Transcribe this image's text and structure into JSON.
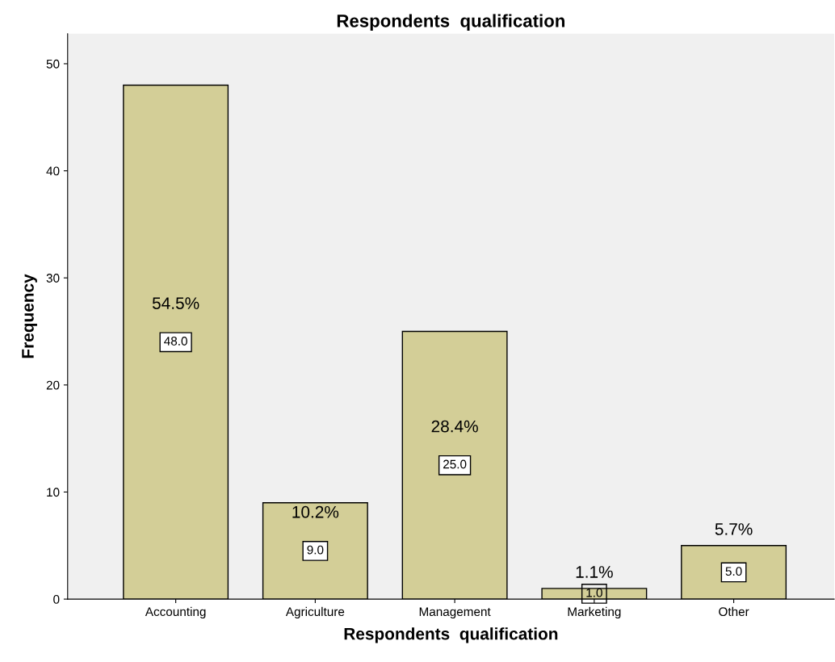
{
  "chart_data": {
    "type": "bar",
    "title": "Respondents  qualification",
    "xlabel": "Respondents  qualification",
    "ylabel": "Frequency",
    "categories": [
      "Accounting",
      "Agriculture",
      "Management",
      "Marketing",
      "Other"
    ],
    "values": [
      48,
      9,
      25,
      1,
      5
    ],
    "value_labels": [
      "48.0",
      "9.0",
      "25.0",
      "1.0",
      "5.0"
    ],
    "color": "#d3ce97",
    "ylim": [
      0,
      52.8
    ],
    "yticks": [
      0,
      10,
      20,
      30,
      40,
      50
    ],
    "grid": false,
    "legend": false,
    "annotations": [
      "54.5%",
      "10.2%",
      "28.4%",
      "1.1%",
      "5.7%"
    ]
  }
}
